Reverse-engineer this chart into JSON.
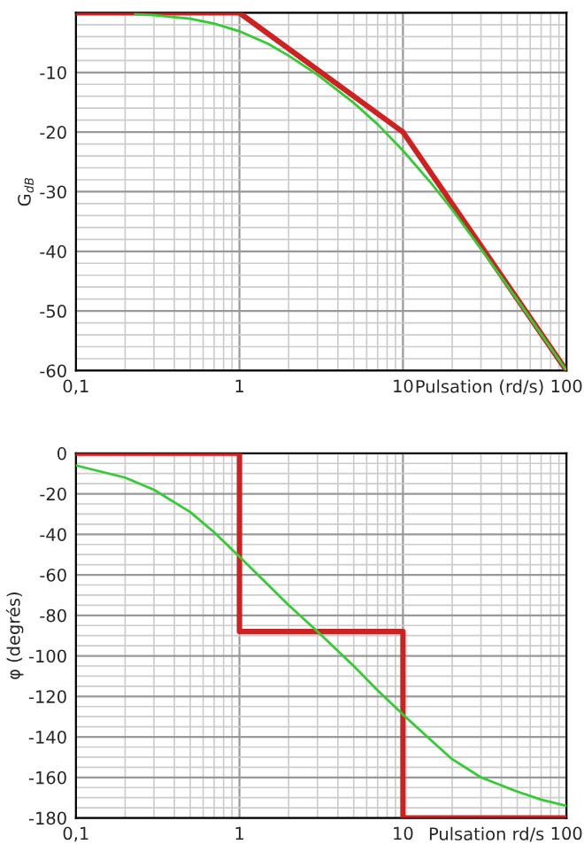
{
  "chart_data": [
    {
      "type": "line",
      "ylabel": "G$_{dB}$",
      "xlabel": "Pulsation (rd/s)",
      "log": "x",
      "grid": true,
      "xlim": [
        0.1,
        100
      ],
      "xticks": [
        {
          "value": 0.1,
          "label": "0,1"
        },
        1,
        10,
        100
      ],
      "ylim": [
        -60,
        0
      ],
      "yticks": [
        -60,
        -50,
        -40,
        -30,
        -20,
        -10,
        {
          "value": 0,
          "label": null
        }
      ],
      "series": [
        {
          "type": "line",
          "color": "#33cc33",
          "x": [
            0.23,
            0.3,
            0.5,
            0.7,
            1,
            1.5,
            2,
            3,
            5,
            7,
            10,
            15,
            20,
            30,
            50,
            70,
            100
          ],
          "values": [
            -0.2,
            -0.4,
            -1.0,
            -1.8,
            -3.1,
            -5.2,
            -7.2,
            -10.4,
            -15.1,
            -18.7,
            -23.1,
            -28.7,
            -33.0,
            -39.6,
            -48.1,
            -53.9,
            -60
          ]
        },
        {
          "type": "line",
          "color": "#cc2222",
          "x": [
            0.1,
            1,
            10,
            100
          ],
          "values": [
            0,
            0,
            -20,
            -60
          ]
        }
      ]
    },
    {
      "type": "line",
      "ylabel": "φ (degrés)",
      "xlabel": "Pulsation rd/s",
      "log": "x",
      "grid": true,
      "xlim": [
        0.1,
        100
      ],
      "xticks": [
        {
          "value": 0.1,
          "label": "0,1"
        },
        1,
        10,
        100
      ],
      "ylim": [
        -180,
        0
      ],
      "yticks": [
        -180,
        -160,
        -140,
        -120,
        -100,
        -80,
        -60,
        -40,
        -20,
        0
      ],
      "series": [
        {
          "type": "line",
          "color": "#33cc33",
          "x": [
            0.1,
            0.2,
            0.3,
            0.5,
            0.7,
            1,
            1.5,
            2,
            3,
            5,
            7,
            10,
            15,
            20,
            30,
            50,
            70,
            100
          ],
          "values": [
            -6,
            -12,
            -18,
            -29,
            -39,
            -51,
            -65,
            -75,
            -88,
            -105,
            -117,
            -129,
            -142,
            -151,
            -160,
            -167,
            -171,
            -174
          ]
        },
        {
          "type": "step",
          "color": "#cc2222",
          "x": [
            0.1,
            1,
            10,
            100
          ],
          "values": [
            0,
            -88,
            -180,
            -180
          ]
        }
      ]
    }
  ]
}
